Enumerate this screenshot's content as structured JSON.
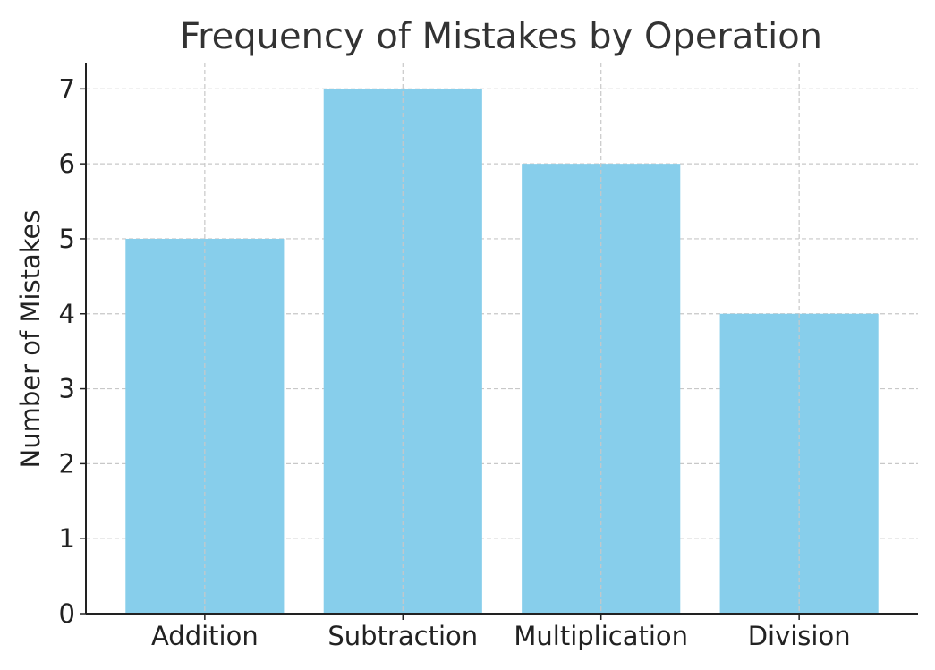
{
  "chart_data": {
    "type": "bar",
    "title": "Frequency of Mistakes by Operation",
    "xlabel": "",
    "ylabel": "Number of Mistakes",
    "categories": [
      "Addition",
      "Subtraction",
      "Multiplication",
      "Division"
    ],
    "values": [
      5,
      7,
      6,
      4
    ],
    "ylim": [
      0,
      7.35
    ],
    "yticks": [
      0,
      1,
      2,
      3,
      4,
      5,
      6,
      7
    ],
    "grid": true,
    "bar_color": "#87ceeb"
  }
}
